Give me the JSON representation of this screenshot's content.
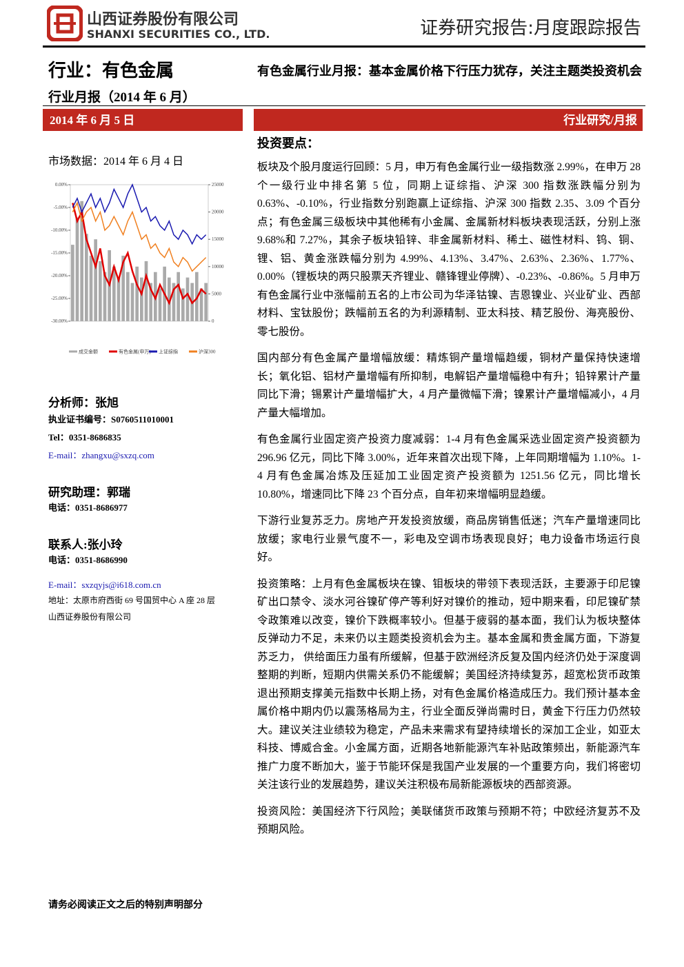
{
  "header": {
    "company_cn": "山西证券股份有限公司",
    "company_en": "SHANXI SECURITIES CO., LTD.",
    "report_type": "证券研究报告:月度跟踪报告"
  },
  "left": {
    "industry": "行业：有色金属",
    "report_period": "行业月报（2014 年 6 月）",
    "date": "2014 年 6 月 5 日",
    "market_data": "市场数据：2014 年 6 月 4 日",
    "analyst": "分析师：张旭",
    "cert": "执业证书编号：S0760511010001",
    "tel": "Tel：0351-8686835",
    "email": "E-mail：zhangxu@sxzq.com",
    "assistant": "研究助理：郭瑞",
    "assistant_tel": "电话：0351-8686977",
    "contact": "联系人:张小玲",
    "contact_tel": "电话：0351-8686990",
    "contact_email": "E-mail：sxzqyjs@i618.com.cn",
    "address": "地址：太原市府西街 69 号国贸中心 A 座 28 层",
    "company": "山西证券股份有限公司"
  },
  "right": {
    "title": "有色金属行业月报：基本金属价格下行压力犹存，关注主题类投资机会",
    "section_label": "行业研究/月报",
    "heading": "投资要点：",
    "paragraphs": [
      "板块及个股月度运行回顾：5 月，申万有色金属行业一级指数涨 2.99%，在申万 28 个一级行业中排名第 5 位，同期上证综指、沪深 300 指数涨跌幅分别为 0.63%、-0.10%，行业指数分别跑赢上证综指、沪深 300 指数 2.35、3.09 个百分点；有色金属三级板块中其他稀有小金属、金属新材料板块表现活跃，分别上涨 9.68%和 7.27%，其余子板块铅锌、非金属新材料、稀土、磁性材料、钨、铜、锂、铝、黄金涨跌幅分别为 4.99%、4.13%、3.47%、2.63%、2.36%、1.77%、0.00%（锂板块的两只股票天齐锂业、赣锋锂业停牌）、-0.23%、-0.86%。5 月申万有色金属行业中涨幅前五名的上市公司为华泽钴镍、吉恩镍业、兴业矿业、西部材料、宝钛股份；跌幅前五名的为利源精制、亚太科技、精艺股份、海亮股份、零七股份。",
      "国内部分有色金属产量增幅放缓：精炼铜产量增幅趋缓，铜材产量保持快速增长；氧化铝、铝材产量增幅有所抑制，电解铝产量增幅稳中有升；铅锌累计产量同比下滑；锡累计产量增幅扩大，4 月产量微幅下滑；镍累计产量增幅减小，4 月产量大幅增加。",
      "有色金属行业固定资产投资力度减弱：1-4 月有色金属采选业固定资产投资额为 296.96 亿元，同比下降 3.00%，近年来首次出现下降，上年同期增幅为 1.10%。1-4 月有色金属冶炼及压延加工业固定资产投资额为 1251.56 亿元，同比增长 10.80%，增速同比下降 23 个百分点，自年初来增幅明显趋缓。",
      "下游行业复苏乏力。房地产开发投资放缓，商品房销售低迷；汽车产量增速同比放缓；家电行业景气度不一，彩电及空调市场表现良好；电力设备市场运行良好。",
      "投资策略：上月有色金属板块在镍、钼板块的带领下表现活跃，主要源于印尼镍矿出口禁令、淡水河谷镍矿停产等利好对镍价的推动，短中期来看，印尼镍矿禁令政策难以改变，镍价下跌概率较小。但基于疲弱的基本面，我们认为板块整体反弹动力不足，未来仍以主题类投资机会为主。基本金属和贵金属方面，下游复苏乏力， 供给面压力虽有所缓解，但基于欧洲经济反复及国内经济仍处于深度调整期的判断，短期内供需关系仍不能缓解；美国经济持续复苏，超宽松货币政策退出预期支撑美元指数中长期上扬，对有色金属价格造成压力。我们预计基本金属价格中期内仍以震荡格局为主，行业全面反弹尚需时日，黄金下行压力仍然较大。建议关注业绩较为稳定，产品未来需求有望持续增长的深加工企业，如亚太科技、博威合金。小金属方面，近期各地新能源汽车补贴政策频出，新能源汽车推广力度不断加大，鉴于节能环保是我国产业发展的一个重要方向，我们将密切关注该行业的发展趋势，建议关注积极布局新能源板块的西部资源。",
      "投资风险：美国经济下行风险；美联储货币政策与预期不符；中欧经济复苏不及预期风险。"
    ]
  },
  "footer": {
    "notice": "请务必阅读正文之后的特别声明部分"
  },
  "chart_data": {
    "type": "line",
    "ylim": [
      -30,
      0
    ],
    "yticks": [
      {
        "value": 0,
        "label": "0.00%"
      },
      {
        "value": -5,
        "label": "-5.00%"
      },
      {
        "value": -10,
        "label": "-10.00%"
      },
      {
        "value": -15,
        "label": "-15.00%"
      },
      {
        "value": -20,
        "label": "-20.00%"
      },
      {
        "value": -25,
        "label": "-25.00%"
      },
      {
        "value": -30,
        "label": "-30.00%"
      }
    ],
    "y2lim": [
      0,
      25000
    ],
    "y2ticks": [
      0,
      5000,
      10000,
      15000,
      20000,
      25000
    ],
    "series": [
      {
        "name": "成交金额",
        "color": "#aaaaaa",
        "axis": "y2",
        "kind": "bar",
        "values": [
          14000,
          19000,
          22000,
          16000,
          12000,
          15000,
          11000,
          9000,
          13000,
          10000,
          8000,
          12000,
          9000,
          7000,
          10000,
          8000,
          11000,
          7000,
          9000,
          6000,
          10000,
          8000,
          7000,
          9000,
          6000,
          8000,
          7000,
          9000,
          6000,
          7000
        ]
      },
      {
        "name": "有色金属(申万)",
        "color": "#e00000",
        "kind": "line",
        "values": [
          -4,
          -8,
          -6,
          -12,
          -15,
          -18,
          -14,
          -20,
          -22,
          -18,
          -21,
          -17,
          -15,
          -19,
          -22,
          -24,
          -20,
          -23,
          -25,
          -22,
          -24,
          -26,
          -23,
          -22,
          -25,
          -24,
          -26,
          -25,
          -23,
          -24
        ]
      },
      {
        "name": "上证综指",
        "color": "#1a1ab0",
        "kind": "line",
        "values": [
          -5,
          -3,
          -6,
          -4,
          -2,
          -5,
          -3,
          -6,
          -4,
          -1,
          -3,
          -5,
          -2,
          0,
          -3,
          -6,
          -5,
          -8,
          -7,
          -9,
          -10,
          -8,
          -11,
          -12,
          -10,
          -11,
          -13,
          -11,
          -12,
          -11
        ]
      },
      {
        "name": "沪深300",
        "color": "#f08020",
        "kind": "line",
        "values": [
          -6,
          -4,
          -8,
          -6,
          -5,
          -8,
          -6,
          -10,
          -9,
          -7,
          -9,
          -11,
          -8,
          -6,
          -9,
          -12,
          -11,
          -14,
          -13,
          -15,
          -16,
          -14,
          -17,
          -18,
          -16,
          -17,
          -19,
          -18,
          -17,
          -16
        ]
      }
    ]
  }
}
